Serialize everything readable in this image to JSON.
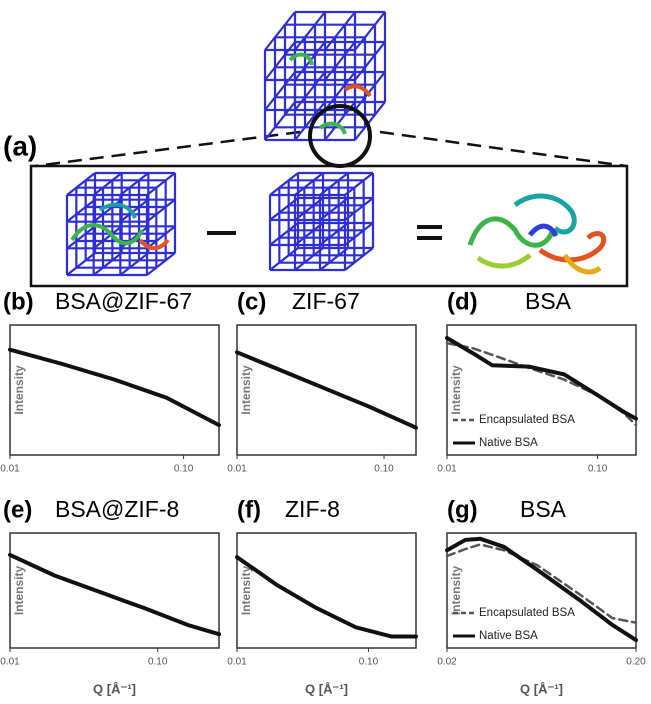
{
  "panel_a": "(a)",
  "chart_data": [
    {
      "type": "line",
      "panel": "(b)",
      "title": "BSA@ZIF-67",
      "ylabel": "Intensity",
      "xscale": "log",
      "x": [
        0.01,
        0.02,
        0.04,
        0.08,
        0.16
      ],
      "xlim": [
        0.01,
        0.16
      ],
      "ylim": [
        0,
        100
      ],
      "xticks": [
        0.01,
        {
          "value": 0.1,
          "label": "0.10"
        }
      ],
      "series": [
        {
          "color": "#111111",
          "linestyle": "solid",
          "values": [
            81,
            70,
            58,
            44,
            23
          ]
        }
      ]
    },
    {
      "type": "line",
      "panel": "(c)",
      "title": "ZIF-67",
      "ylabel": "Intensity",
      "xscale": "log",
      "x": [
        0.01,
        0.02,
        0.04,
        0.08,
        0.165
      ],
      "xlim": [
        0.01,
        0.165
      ],
      "ylim": [
        0,
        100
      ],
      "xticks": [
        0.01,
        {
          "value": 0.1,
          "label": "0.10"
        }
      ],
      "series": [
        {
          "color": "#111111",
          "linestyle": "solid",
          "values": [
            79,
            65,
            51,
            37,
            21
          ]
        }
      ]
    },
    {
      "type": "line",
      "panel": "(d)",
      "title": "BSA",
      "ylabel": "Intensity",
      "xscale": "log",
      "x": [
        0.01,
        0.015,
        0.02,
        0.035,
        0.06,
        0.1,
        0.15,
        0.18
      ],
      "xlim": [
        0.01,
        0.18
      ],
      "ylim": [
        0,
        100
      ],
      "xticks": [
        0.01,
        {
          "value": 0.1,
          "label": "0.10"
        }
      ],
      "legend": "lower left",
      "series": [
        {
          "name": "Encapsulated BSA",
          "color": "#555555",
          "linestyle": "dashed",
          "values": [
            86,
            82,
            77,
            67,
            58,
            46,
            32,
            23
          ]
        },
        {
          "name": "Native BSA",
          "color": "#111111",
          "linestyle": "solid",
          "values": [
            90,
            78,
            69,
            68,
            62,
            46,
            33,
            28
          ]
        }
      ]
    },
    {
      "type": "line",
      "panel": "(e)",
      "title": "BSA@ZIF-8",
      "ylabel": "Intensity",
      "xlabel": "Q [Å⁻¹]",
      "xscale": "log",
      "x": [
        0.01,
        0.02,
        0.04,
        0.08,
        0.16,
        0.26
      ],
      "xlim": [
        0.01,
        0.26
      ],
      "ylim": [
        0,
        100
      ],
      "xticks": [
        0.01,
        {
          "value": 0.1,
          "label": "0.10"
        }
      ],
      "series": [
        {
          "color": "#111111",
          "linestyle": "solid",
          "values": [
            81,
            63,
            49,
            35,
            20,
            12
          ]
        }
      ]
    },
    {
      "type": "line",
      "panel": "(f)",
      "title": "ZIF-8",
      "ylabel": "Intensity",
      "xlabel": "Q [Å⁻¹]",
      "xscale": "log",
      "x": [
        0.01,
        0.02,
        0.04,
        0.08,
        0.15,
        0.23
      ],
      "xlim": [
        0.01,
        0.23
      ],
      "ylim": [
        0,
        100
      ],
      "xticks": [
        0.01,
        {
          "value": 0.1,
          "label": "0.10"
        }
      ],
      "series": [
        {
          "color": "#111111",
          "linestyle": "solid",
          "values": [
            79,
            55,
            35,
            18,
            10,
            10
          ]
        }
      ]
    },
    {
      "type": "line",
      "panel": "(g)",
      "title": "BSA",
      "ylabel": "Intensity",
      "xlabel": "Q [Å⁻¹]",
      "xscale": "log",
      "x": [
        0.02,
        0.025,
        0.03,
        0.04,
        0.06,
        0.1,
        0.15,
        0.2
      ],
      "xlim": [
        0.02,
        0.2
      ],
      "ylim": [
        0,
        100
      ],
      "xticks": [
        0.02,
        {
          "value": 0.2,
          "label": "0.20"
        }
      ],
      "legend": "lower left",
      "series": [
        {
          "name": "Encapsulated BSA",
          "color": "#555555",
          "linestyle": "dashed",
          "values": [
            80,
            86,
            90,
            85,
            72,
            47,
            26,
            22
          ]
        },
        {
          "name": "Native BSA",
          "color": "#111111",
          "linestyle": "solid",
          "values": [
            85,
            94,
            95,
            88,
            68,
            42,
            20,
            7
          ]
        }
      ]
    }
  ]
}
